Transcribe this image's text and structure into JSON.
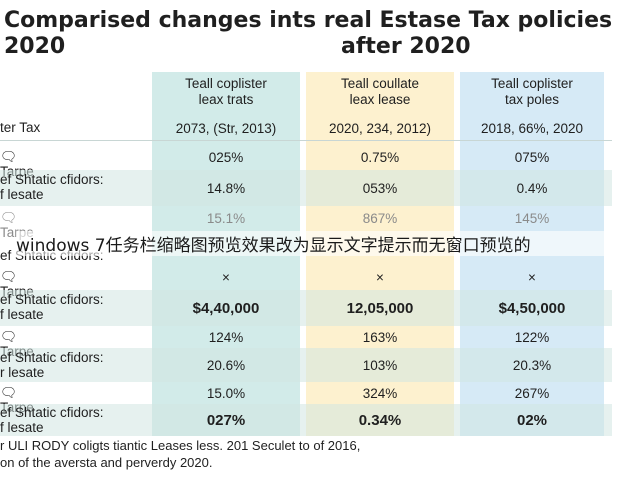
{
  "title": {
    "line1": "Comparised changes ints real Estase Tax policies",
    "line2_left": "2020",
    "line2_right": "after 2020"
  },
  "colors": {
    "col1": "#d2ebe9",
    "col2": "#fdf1cf",
    "col3": "#d6eaf6"
  },
  "columns": [
    {
      "line1": "Teall coplister",
      "line2": "leax trats"
    },
    {
      "line1": "Teall coullate",
      "line2": "leax lease"
    },
    {
      "line1": "Teall coplister",
      "line2": "tax poles"
    }
  ],
  "rows": [
    {
      "label": [
        "ter Tax"
      ],
      "cells": [
        "2073, (Str, 2013)",
        "2020, 234, 2012)",
        "2018, 66%, 2020"
      ]
    },
    {
      "label": [
        "Tarpe"
      ],
      "icon": "speech-bubble-icon",
      "cells": [
        "025%",
        "0.75%",
        "075%"
      ]
    },
    {
      "label": [
        "ef Shtatic cfidors:",
        "f lesate"
      ],
      "cells": [
        "14.8%",
        "053%",
        "0.4%"
      ]
    },
    {
      "label": [
        "Tarpe"
      ],
      "icon": "speech-bubble-icon",
      "cells": [
        "15.1%",
        "867%",
        "145%"
      ]
    },
    {
      "label": [
        "ef Shtatic cfidors:"
      ],
      "cells": [
        "",
        "",
        ""
      ]
    },
    {
      "label": [
        "Tarpe"
      ],
      "icon": "speech-bubble-icon",
      "cells": [
        "×",
        "×",
        "×"
      ]
    },
    {
      "label": [
        "ef Shtatic cfidors:",
        "f lesate"
      ],
      "cells": [
        "$4,40,000",
        "12,05,000",
        "$4,50,000"
      ]
    },
    {
      "label": [
        "Tarpe"
      ],
      "icon": "speech-bubble-icon",
      "cells": [
        "124%",
        "163%",
        "122%"
      ]
    },
    {
      "label": [
        "ef Shtatic cfidors:",
        "r lesate"
      ],
      "cells": [
        "20.6%",
        "103%",
        "20.3%"
      ]
    },
    {
      "label": [
        "Tarpe"
      ],
      "icon": "speech-bubble-icon",
      "cells": [
        "15.0%",
        "324%",
        "267%"
      ]
    },
    {
      "label": [
        "ef Shtatic cfidors:",
        "f lesate"
      ],
      "cells": [
        "027%",
        "0.34%",
        "02%"
      ]
    }
  ],
  "overlay_text": "windows 7任务栏缩略图预览效果改为显示文字提示而无窗口预览的",
  "footer": {
    "line1": "r ULI RODY coligts tiantic Leases less. 201 Seculet to of 2016,",
    "line2": "on of the aversta and perverdy 2020."
  }
}
